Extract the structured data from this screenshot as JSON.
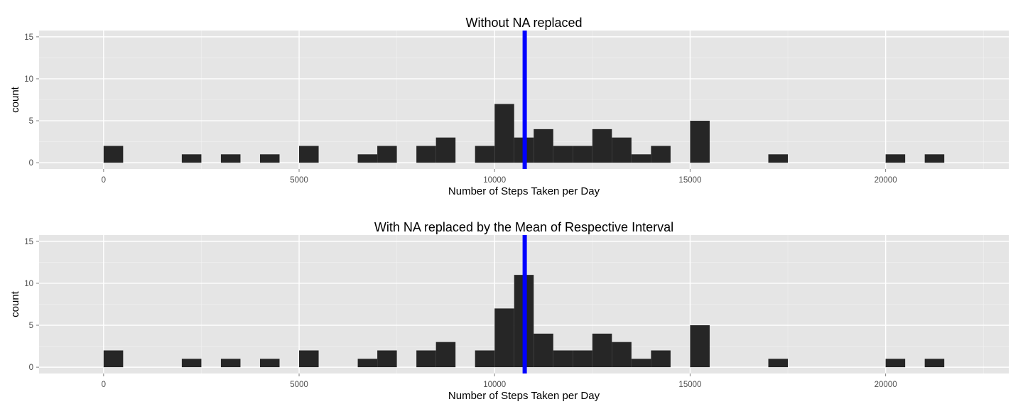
{
  "chart_data": [
    {
      "type": "bar",
      "title": "Without NA replaced",
      "xlabel": "Number of Steps Taken per Day",
      "ylabel": "count",
      "xlim": [
        -1650,
        23150
      ],
      "ylim": [
        -0.75,
        15.75
      ],
      "xticks": [
        0,
        5000,
        10000,
        15000,
        20000
      ],
      "yticks": [
        0,
        5,
        10,
        15
      ],
      "binwidth": 500,
      "bins": [
        {
          "x": 0,
          "count": 2
        },
        {
          "x": 2000,
          "count": 1
        },
        {
          "x": 3000,
          "count": 1
        },
        {
          "x": 4000,
          "count": 1
        },
        {
          "x": 5000,
          "count": 2
        },
        {
          "x": 6500,
          "count": 1
        },
        {
          "x": 7000,
          "count": 2
        },
        {
          "x": 8000,
          "count": 2
        },
        {
          "x": 8500,
          "count": 3
        },
        {
          "x": 9500,
          "count": 2
        },
        {
          "x": 10000,
          "count": 7
        },
        {
          "x": 10500,
          "count": 3
        },
        {
          "x": 11000,
          "count": 4
        },
        {
          "x": 11500,
          "count": 2
        },
        {
          "x": 12000,
          "count": 2
        },
        {
          "x": 12500,
          "count": 4
        },
        {
          "x": 13000,
          "count": 3
        },
        {
          "x": 13500,
          "count": 1
        },
        {
          "x": 14000,
          "count": 2
        },
        {
          "x": 15000,
          "count": 5
        },
        {
          "x": 17000,
          "count": 1
        },
        {
          "x": 20000,
          "count": 1
        },
        {
          "x": 21000,
          "count": 1
        }
      ],
      "vline": 10770,
      "vline_color": "#0000ff",
      "bar_color": "#262626",
      "panel_color": "#e5e5e5",
      "grid": true
    },
    {
      "type": "bar",
      "title": "With NA replaced by the Mean of Respective Interval",
      "xlabel": "Number of Steps Taken per Day",
      "ylabel": "count",
      "xlim": [
        -1650,
        23150
      ],
      "ylim": [
        -0.75,
        15.75
      ],
      "xticks": [
        0,
        5000,
        10000,
        15000,
        20000
      ],
      "yticks": [
        0,
        5,
        10,
        15
      ],
      "binwidth": 500,
      "bins": [
        {
          "x": 0,
          "count": 2
        },
        {
          "x": 2000,
          "count": 1
        },
        {
          "x": 3000,
          "count": 1
        },
        {
          "x": 4000,
          "count": 1
        },
        {
          "x": 5000,
          "count": 2
        },
        {
          "x": 6500,
          "count": 1
        },
        {
          "x": 7000,
          "count": 2
        },
        {
          "x": 8000,
          "count": 2
        },
        {
          "x": 8500,
          "count": 3
        },
        {
          "x": 9500,
          "count": 2
        },
        {
          "x": 10000,
          "count": 7
        },
        {
          "x": 10500,
          "count": 11
        },
        {
          "x": 11000,
          "count": 4
        },
        {
          "x": 11500,
          "count": 2
        },
        {
          "x": 12000,
          "count": 2
        },
        {
          "x": 12500,
          "count": 4
        },
        {
          "x": 13000,
          "count": 3
        },
        {
          "x": 13500,
          "count": 1
        },
        {
          "x": 14000,
          "count": 2
        },
        {
          "x": 15000,
          "count": 5
        },
        {
          "x": 17000,
          "count": 1
        },
        {
          "x": 20000,
          "count": 1
        },
        {
          "x": 21000,
          "count": 1
        }
      ],
      "vline": 10770,
      "vline_color": "#0000ff",
      "bar_color": "#262626",
      "panel_color": "#e5e5e5",
      "grid": true
    }
  ]
}
